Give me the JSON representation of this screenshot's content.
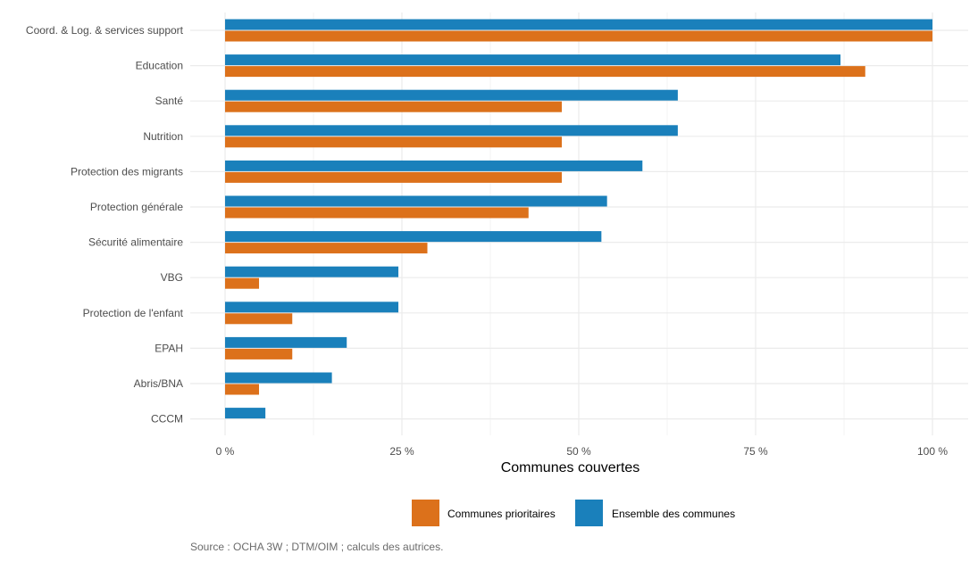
{
  "chart_data": {
    "type": "bar",
    "orientation": "horizontal",
    "categories": [
      "Coord. & Log. & services support",
      "Education",
      "Santé",
      "Nutrition",
      "Protection des migrants",
      "Protection générale",
      "Sécurité alimentaire",
      "VBG",
      "Protection de l'enfant",
      "EPAH",
      "Abris/BNA",
      "CCCM"
    ],
    "series": [
      {
        "name": "Ensemble des communes",
        "color": "#1a80bb",
        "values": [
          100,
          87,
          64,
          64,
          59,
          54,
          53.2,
          24.5,
          24.5,
          17.2,
          15.1,
          5.7
        ]
      },
      {
        "name": "Communes prioritaires",
        "color": "#dc711b",
        "values": [
          100,
          90.5,
          47.6,
          47.6,
          47.6,
          42.9,
          28.6,
          4.8,
          9.5,
          9.5,
          4.8,
          0
        ]
      }
    ],
    "xlabel": "Communes couvertes",
    "ylabel": "",
    "xlim": [
      -5,
      105
    ],
    "x_ticks": [
      0,
      25,
      50,
      75,
      100
    ],
    "x_tick_labels": [
      "0 %",
      "25 %",
      "50 %",
      "75 %",
      "100 %"
    ],
    "grid": true,
    "legend_position": "bottom",
    "legend": [
      {
        "name": "Communes prioritaires",
        "color": "#dc711b"
      },
      {
        "name": "Ensemble des communes",
        "color": "#1a80bb"
      }
    ],
    "caption": "Source : OCHA 3W ; DTM/OIM ; calculs des autrices."
  }
}
